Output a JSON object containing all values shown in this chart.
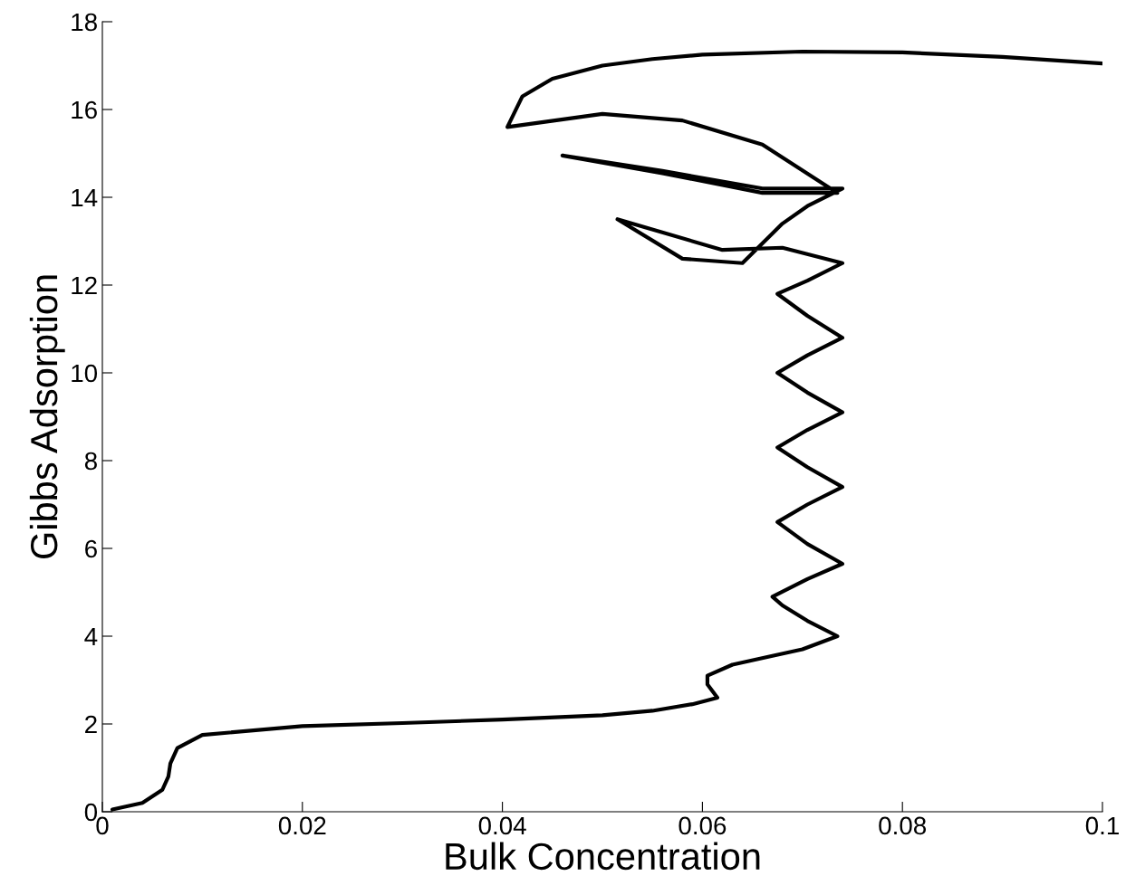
{
  "chart_data": {
    "type": "line",
    "xlabel": "Bulk Concentration",
    "ylabel": "Gibbs Adsorption",
    "xlim": [
      0,
      0.1
    ],
    "ylim": [
      0,
      18
    ],
    "xticks": [
      0,
      0.02,
      0.04,
      0.06,
      0.08,
      0.1
    ],
    "yticks": [
      0,
      2,
      4,
      6,
      8,
      10,
      12,
      14,
      16,
      18
    ],
    "grid": false,
    "marker": "none",
    "line_style": "solid",
    "series": [
      {
        "color": "#000000",
        "x": [
          0.001,
          0.004,
          0.006,
          0.0066,
          0.0068,
          0.0075,
          0.01,
          0.02,
          0.03,
          0.04,
          0.05,
          0.055,
          0.059,
          0.0615,
          0.0605,
          0.0605,
          0.063,
          0.067,
          0.07,
          0.0735,
          0.0705,
          0.068,
          0.067,
          0.0705,
          0.074,
          0.0705,
          0.0675,
          0.0705,
          0.074,
          0.0705,
          0.0675,
          0.0705,
          0.074,
          0.0705,
          0.0675,
          0.0705,
          0.074,
          0.0705,
          0.0675,
          0.0705,
          0.074,
          0.068,
          0.062,
          0.0515,
          0.058,
          0.064,
          0.068,
          0.0705,
          0.074,
          0.066,
          0.056,
          0.046,
          0.056,
          0.066,
          0.0735,
          0.066,
          0.058,
          0.05,
          0.0405,
          0.042,
          0.045,
          0.05,
          0.055,
          0.06,
          0.07,
          0.08,
          0.09,
          0.1
        ],
        "values": [
          0.05,
          0.2,
          0.5,
          0.8,
          1.1,
          1.45,
          1.75,
          1.95,
          2.02,
          2.1,
          2.2,
          2.3,
          2.45,
          2.6,
          2.9,
          3.1,
          3.35,
          3.55,
          3.7,
          4.0,
          4.35,
          4.7,
          4.9,
          5.3,
          5.65,
          6.1,
          6.6,
          7.0,
          7.4,
          7.85,
          8.3,
          8.7,
          9.1,
          9.55,
          10.0,
          10.4,
          10.8,
          11.3,
          11.8,
          12.1,
          12.5,
          12.85,
          12.8,
          13.5,
          12.6,
          12.5,
          13.4,
          13.8,
          14.2,
          14.2,
          14.6,
          14.95,
          14.55,
          14.1,
          14.1,
          15.2,
          15.75,
          15.9,
          15.6,
          16.3,
          16.7,
          17.0,
          17.15,
          17.25,
          17.32,
          17.3,
          17.2,
          17.05
        ]
      }
    ]
  }
}
